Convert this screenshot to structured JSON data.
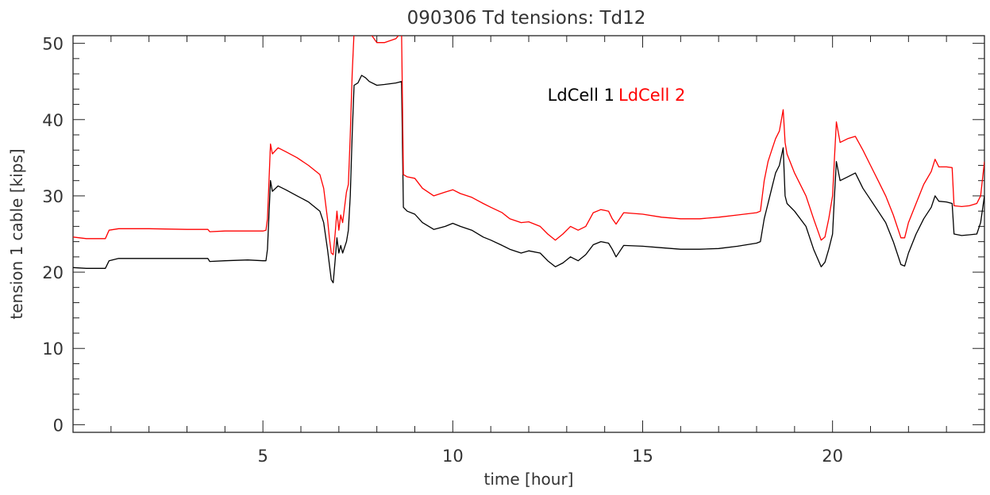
{
  "chart_data": {
    "type": "line",
    "title": "090306 Td tensions: Td12",
    "xlabel": "time [hour]",
    "ylabel": "tension 1 cable [kips]",
    "xlim": [
      0,
      24
    ],
    "ylim": [
      -1,
      51
    ],
    "xticks": [
      5,
      10,
      15,
      20
    ],
    "yticks": [
      0,
      10,
      20,
      30,
      40,
      50
    ],
    "grid": false,
    "legend_position": "top-right",
    "series": [
      {
        "name": "LdCell 1",
        "color": "#000000",
        "points": [
          [
            0.0,
            20.6
          ],
          [
            0.35,
            20.5
          ],
          [
            0.85,
            20.5
          ],
          [
            0.95,
            21.5
          ],
          [
            1.2,
            21.8
          ],
          [
            2.0,
            21.8
          ],
          [
            3.0,
            21.8
          ],
          [
            3.55,
            21.8
          ],
          [
            3.6,
            21.4
          ],
          [
            4.0,
            21.5
          ],
          [
            4.6,
            21.6
          ],
          [
            5.0,
            21.5
          ],
          [
            5.08,
            21.5
          ],
          [
            5.12,
            23.0
          ],
          [
            5.2,
            32.0
          ],
          [
            5.25,
            30.6
          ],
          [
            5.4,
            31.3
          ],
          [
            5.6,
            30.8
          ],
          [
            5.9,
            30.0
          ],
          [
            6.2,
            29.2
          ],
          [
            6.5,
            28.0
          ],
          [
            6.6,
            26.5
          ],
          [
            6.7,
            23.0
          ],
          [
            6.75,
            21.0
          ],
          [
            6.8,
            19.0
          ],
          [
            6.85,
            18.6
          ],
          [
            6.9,
            21.5
          ],
          [
            6.95,
            24.5
          ],
          [
            7.0,
            22.5
          ],
          [
            7.05,
            23.5
          ],
          [
            7.1,
            22.5
          ],
          [
            7.2,
            24.0
          ],
          [
            7.25,
            25.5
          ],
          [
            7.3,
            30.0
          ],
          [
            7.35,
            38.0
          ],
          [
            7.4,
            44.5
          ],
          [
            7.5,
            44.8
          ],
          [
            7.6,
            45.8
          ],
          [
            7.7,
            45.5
          ],
          [
            7.8,
            45.0
          ],
          [
            8.0,
            44.5
          ],
          [
            8.2,
            44.6
          ],
          [
            8.5,
            44.8
          ],
          [
            8.65,
            45.0
          ],
          [
            8.7,
            28.5
          ],
          [
            8.8,
            28.0
          ],
          [
            9.0,
            27.6
          ],
          [
            9.2,
            26.5
          ],
          [
            9.5,
            25.6
          ],
          [
            9.8,
            26.0
          ],
          [
            10.0,
            26.4
          ],
          [
            10.2,
            26.0
          ],
          [
            10.5,
            25.5
          ],
          [
            10.8,
            24.6
          ],
          [
            11.0,
            24.2
          ],
          [
            11.3,
            23.5
          ],
          [
            11.5,
            23.0
          ],
          [
            11.8,
            22.5
          ],
          [
            12.0,
            22.8
          ],
          [
            12.3,
            22.5
          ],
          [
            12.5,
            21.5
          ],
          [
            12.7,
            20.7
          ],
          [
            12.9,
            21.2
          ],
          [
            13.1,
            22.0
          ],
          [
            13.3,
            21.5
          ],
          [
            13.5,
            22.3
          ],
          [
            13.7,
            23.6
          ],
          [
            13.9,
            24.0
          ],
          [
            14.1,
            23.8
          ],
          [
            14.2,
            23.0
          ],
          [
            14.3,
            22.0
          ],
          [
            14.5,
            23.5
          ],
          [
            15.0,
            23.4
          ],
          [
            15.5,
            23.2
          ],
          [
            16.0,
            23.0
          ],
          [
            16.5,
            23.0
          ],
          [
            17.0,
            23.1
          ],
          [
            17.5,
            23.4
          ],
          [
            18.0,
            23.8
          ],
          [
            18.1,
            24.0
          ],
          [
            18.2,
            27.0
          ],
          [
            18.3,
            29.0
          ],
          [
            18.4,
            31.0
          ],
          [
            18.5,
            33.0
          ],
          [
            18.6,
            34.0
          ],
          [
            18.7,
            36.3
          ],
          [
            18.75,
            30.0
          ],
          [
            18.8,
            29.0
          ],
          [
            19.0,
            28.0
          ],
          [
            19.3,
            26.0
          ],
          [
            19.5,
            23.0
          ],
          [
            19.7,
            20.7
          ],
          [
            19.8,
            21.3
          ],
          [
            19.9,
            23.0
          ],
          [
            20.0,
            25.0
          ],
          [
            20.05,
            30.0
          ],
          [
            20.1,
            34.5
          ],
          [
            20.2,
            32.0
          ],
          [
            20.4,
            32.5
          ],
          [
            20.6,
            33.0
          ],
          [
            20.8,
            31.0
          ],
          [
            21.0,
            29.5
          ],
          [
            21.2,
            28.0
          ],
          [
            21.4,
            26.5
          ],
          [
            21.6,
            24.0
          ],
          [
            21.8,
            21.0
          ],
          [
            21.9,
            20.8
          ],
          [
            22.0,
            22.5
          ],
          [
            22.2,
            25.0
          ],
          [
            22.4,
            27.0
          ],
          [
            22.6,
            28.5
          ],
          [
            22.7,
            30.0
          ],
          [
            22.8,
            29.3
          ],
          [
            23.0,
            29.2
          ],
          [
            23.15,
            29.0
          ],
          [
            23.2,
            25.0
          ],
          [
            23.4,
            24.8
          ],
          [
            23.6,
            24.9
          ],
          [
            23.8,
            25.0
          ],
          [
            23.9,
            26.5
          ],
          [
            24.0,
            30.0
          ]
        ]
      },
      {
        "name": "LdCell 2",
        "color": "#ff0000",
        "points": [
          [
            0.0,
            24.6
          ],
          [
            0.35,
            24.4
          ],
          [
            0.85,
            24.4
          ],
          [
            0.95,
            25.5
          ],
          [
            1.2,
            25.7
          ],
          [
            2.0,
            25.7
          ],
          [
            3.0,
            25.6
          ],
          [
            3.55,
            25.6
          ],
          [
            3.6,
            25.3
          ],
          [
            4.0,
            25.4
          ],
          [
            4.6,
            25.4
          ],
          [
            5.0,
            25.4
          ],
          [
            5.08,
            25.5
          ],
          [
            5.12,
            27.0
          ],
          [
            5.2,
            36.8
          ],
          [
            5.25,
            35.5
          ],
          [
            5.4,
            36.3
          ],
          [
            5.6,
            35.8
          ],
          [
            5.9,
            35.0
          ],
          [
            6.2,
            34.0
          ],
          [
            6.5,
            32.8
          ],
          [
            6.6,
            31.0
          ],
          [
            6.7,
            27.0
          ],
          [
            6.75,
            24.5
          ],
          [
            6.8,
            22.5
          ],
          [
            6.85,
            22.3
          ],
          [
            6.9,
            25.0
          ],
          [
            6.95,
            28.0
          ],
          [
            7.0,
            25.5
          ],
          [
            7.05,
            27.5
          ],
          [
            7.1,
            26.5
          ],
          [
            7.2,
            30.5
          ],
          [
            7.25,
            31.5
          ],
          [
            7.3,
            38.0
          ],
          [
            7.35,
            46.0
          ],
          [
            7.4,
            51.5
          ],
          [
            7.6,
            51.5
          ],
          [
            7.8,
            51.5
          ],
          [
            8.0,
            50.1
          ],
          [
            8.2,
            50.1
          ],
          [
            8.5,
            50.6
          ],
          [
            8.65,
            51.5
          ],
          [
            8.7,
            32.8
          ],
          [
            8.8,
            32.5
          ],
          [
            9.0,
            32.3
          ],
          [
            9.2,
            31.0
          ],
          [
            9.5,
            30.0
          ],
          [
            9.8,
            30.5
          ],
          [
            10.0,
            30.8
          ],
          [
            10.2,
            30.3
          ],
          [
            10.5,
            29.8
          ],
          [
            10.8,
            29.0
          ],
          [
            11.0,
            28.5
          ],
          [
            11.3,
            27.8
          ],
          [
            11.5,
            27.0
          ],
          [
            11.8,
            26.5
          ],
          [
            12.0,
            26.6
          ],
          [
            12.3,
            26.0
          ],
          [
            12.5,
            25.0
          ],
          [
            12.7,
            24.2
          ],
          [
            12.9,
            25.0
          ],
          [
            13.1,
            26.0
          ],
          [
            13.3,
            25.5
          ],
          [
            13.5,
            26.0
          ],
          [
            13.7,
            27.8
          ],
          [
            13.9,
            28.2
          ],
          [
            14.1,
            28.0
          ],
          [
            14.2,
            27.0
          ],
          [
            14.3,
            26.3
          ],
          [
            14.5,
            27.8
          ],
          [
            15.0,
            27.6
          ],
          [
            15.5,
            27.2
          ],
          [
            16.0,
            27.0
          ],
          [
            16.5,
            27.0
          ],
          [
            17.0,
            27.2
          ],
          [
            17.5,
            27.5
          ],
          [
            18.0,
            27.8
          ],
          [
            18.1,
            28.0
          ],
          [
            18.2,
            32.0
          ],
          [
            18.3,
            34.5
          ],
          [
            18.4,
            36.0
          ],
          [
            18.5,
            37.5
          ],
          [
            18.6,
            38.5
          ],
          [
            18.7,
            41.3
          ],
          [
            18.75,
            37.0
          ],
          [
            18.8,
            35.5
          ],
          [
            19.0,
            33.0
          ],
          [
            19.3,
            30.0
          ],
          [
            19.5,
            27.0
          ],
          [
            19.7,
            24.2
          ],
          [
            19.8,
            24.6
          ],
          [
            19.9,
            27.0
          ],
          [
            20.0,
            30.0
          ],
          [
            20.05,
            35.0
          ],
          [
            20.1,
            39.7
          ],
          [
            20.2,
            37.0
          ],
          [
            20.4,
            37.5
          ],
          [
            20.6,
            37.8
          ],
          [
            20.8,
            36.0
          ],
          [
            21.0,
            34.0
          ],
          [
            21.2,
            32.0
          ],
          [
            21.4,
            30.0
          ],
          [
            21.6,
            27.5
          ],
          [
            21.8,
            24.5
          ],
          [
            21.9,
            24.5
          ],
          [
            22.0,
            26.5
          ],
          [
            22.2,
            29.0
          ],
          [
            22.4,
            31.5
          ],
          [
            22.6,
            33.2
          ],
          [
            22.7,
            34.8
          ],
          [
            22.8,
            33.8
          ],
          [
            23.0,
            33.8
          ],
          [
            23.15,
            33.7
          ],
          [
            23.2,
            28.7
          ],
          [
            23.4,
            28.6
          ],
          [
            23.6,
            28.7
          ],
          [
            23.8,
            29.0
          ],
          [
            23.9,
            30.0
          ],
          [
            24.0,
            34.5
          ]
        ]
      }
    ]
  }
}
